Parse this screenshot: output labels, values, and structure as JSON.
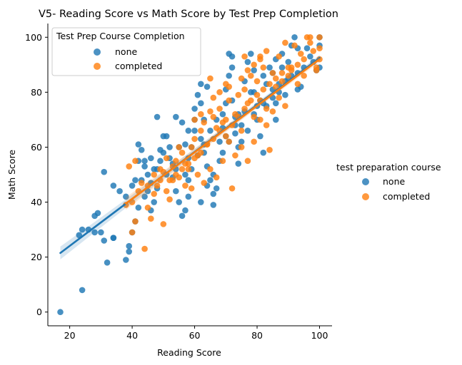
{
  "chart_data": {
    "type": "scatter",
    "title": "V5- Reading Score vs Math Score by Test Prep Completion",
    "xlabel": "Reading Score",
    "ylabel": "Math Score",
    "xlim": [
      13,
      104
    ],
    "ylim": [
      -5,
      105
    ],
    "xticks": [
      20,
      40,
      60,
      80,
      100
    ],
    "yticks": [
      0,
      20,
      40,
      60,
      80,
      100
    ],
    "grid": false,
    "legend_inner": {
      "title": "Test Prep Course Completion",
      "placement": "top-left",
      "entries": [
        "none",
        "completed"
      ]
    },
    "legend_outer": {
      "title": "test preparation course",
      "placement": "right",
      "entries": [
        "none",
        "completed"
      ]
    },
    "colors": {
      "none": "#1f77b4",
      "completed": "#ff7f0e"
    },
    "series": [
      {
        "name": "none",
        "regression": {
          "x": [
            17,
            100
          ],
          "y": [
            21.5,
            92.5
          ]
        },
        "points": [
          [
            17,
            0
          ],
          [
            24,
            8
          ],
          [
            32,
            18
          ],
          [
            38,
            19
          ],
          [
            39,
            22
          ],
          [
            39,
            24
          ],
          [
            34,
            27
          ],
          [
            34,
            27
          ],
          [
            31,
            26
          ],
          [
            30,
            29
          ],
          [
            28,
            29
          ],
          [
            23,
            28
          ],
          [
            24,
            30
          ],
          [
            26,
            30
          ],
          [
            28,
            35
          ],
          [
            29,
            36
          ],
          [
            31,
            51
          ],
          [
            34,
            46
          ],
          [
            36,
            44
          ],
          [
            38,
            42
          ],
          [
            40,
            29
          ],
          [
            41,
            33
          ],
          [
            42,
            38
          ],
          [
            40,
            46
          ],
          [
            41,
            48
          ],
          [
            42,
            55
          ],
          [
            42,
            61
          ],
          [
            43,
            59
          ],
          [
            44,
            53
          ],
          [
            45,
            50
          ],
          [
            46,
            47
          ],
          [
            44,
            42
          ],
          [
            46,
            37
          ],
          [
            47,
            40
          ],
          [
            48,
            45
          ],
          [
            48,
            52
          ],
          [
            49,
            55
          ],
          [
            49,
            59
          ],
          [
            50,
            64
          ],
          [
            48,
            71
          ],
          [
            51,
            64
          ],
          [
            52,
            56
          ],
          [
            53,
            49
          ],
          [
            54,
            44
          ],
          [
            55,
            40
          ],
          [
            56,
            35
          ],
          [
            57,
            37
          ],
          [
            58,
            42
          ],
          [
            57,
            50
          ],
          [
            58,
            56
          ],
          [
            59,
            60
          ],
          [
            58,
            66
          ],
          [
            60,
            70
          ],
          [
            60,
            74
          ],
          [
            61,
            79
          ],
          [
            62,
            76
          ],
          [
            63,
            70
          ],
          [
            62,
            63
          ],
          [
            63,
            58
          ],
          [
            64,
            53
          ],
          [
            65,
            48
          ],
          [
            66,
            43
          ],
          [
            64,
            46
          ],
          [
            66,
            39
          ],
          [
            67,
            45
          ],
          [
            68,
            55
          ],
          [
            68,
            62
          ],
          [
            69,
            67
          ],
          [
            69,
            72
          ],
          [
            70,
            76
          ],
          [
            70,
            81
          ],
          [
            71,
            86
          ],
          [
            72,
            89
          ],
          [
            72,
            77
          ],
          [
            73,
            71
          ],
          [
            73,
            65
          ],
          [
            74,
            60
          ],
          [
            74,
            54
          ],
          [
            75,
            68
          ],
          [
            76,
            73
          ],
          [
            76,
            84
          ],
          [
            77,
            91
          ],
          [
            78,
            94
          ],
          [
            79,
            88
          ],
          [
            79,
            80
          ],
          [
            80,
            75
          ],
          [
            80,
            70
          ],
          [
            81,
            64
          ],
          [
            82,
            58
          ],
          [
            82,
            76
          ],
          [
            83,
            83
          ],
          [
            84,
            89
          ],
          [
            85,
            87
          ],
          [
            85,
            81
          ],
          [
            86,
            76
          ],
          [
            86,
            70
          ],
          [
            87,
            83
          ],
          [
            88,
            89
          ],
          [
            88,
            94
          ],
          [
            89,
            79
          ],
          [
            90,
            85
          ],
          [
            90,
            91
          ],
          [
            91,
            97
          ],
          [
            92,
            100
          ],
          [
            93,
            96
          ],
          [
            93,
            87
          ],
          [
            94,
            82
          ],
          [
            95,
            89
          ],
          [
            96,
            96
          ],
          [
            97,
            93
          ],
          [
            98,
            91
          ],
          [
            99,
            88
          ],
          [
            100,
            97
          ],
          [
            100,
            100
          ],
          [
            100,
            89
          ],
          [
            71,
            94
          ],
          [
            72,
            93
          ],
          [
            64,
            82
          ],
          [
            62,
            83
          ],
          [
            56,
            69
          ],
          [
            54,
            71
          ],
          [
            52,
            60
          ],
          [
            50,
            58
          ],
          [
            46,
            56
          ],
          [
            44,
            55
          ],
          [
            43,
            48
          ],
          [
            45,
            44
          ],
          [
            47,
            52
          ],
          [
            51,
            50
          ],
          [
            53,
            54
          ],
          [
            55,
            60
          ],
          [
            57,
            61
          ],
          [
            59,
            52
          ],
          [
            61,
            57
          ],
          [
            63,
            61
          ],
          [
            65,
            66
          ],
          [
            67,
            70
          ],
          [
            69,
            58
          ],
          [
            71,
            62
          ],
          [
            73,
            68
          ],
          [
            75,
            62
          ],
          [
            77,
            66
          ],
          [
            79,
            72
          ],
          [
            81,
            77
          ],
          [
            83,
            75
          ],
          [
            85,
            78
          ],
          [
            87,
            80
          ],
          [
            89,
            84
          ],
          [
            91,
            86
          ],
          [
            93,
            81
          ],
          [
            62,
            40
          ],
          [
            66,
            50
          ],
          [
            70,
            64
          ],
          [
            74,
            72
          ],
          [
            78,
            80
          ],
          [
            82,
            86
          ],
          [
            86,
            92
          ],
          [
            58,
            48
          ],
          [
            54,
            52
          ],
          [
            60,
            66
          ]
        ]
      },
      {
        "name": "completed",
        "regression": {
          "x": [
            38,
            100
          ],
          "y": [
            39.5,
            92
          ]
        },
        "points": [
          [
            44,
            23
          ],
          [
            40,
            29
          ],
          [
            41,
            33
          ],
          [
            38,
            39
          ],
          [
            40,
            40
          ],
          [
            39,
            53
          ],
          [
            41,
            55
          ],
          [
            42,
            44
          ],
          [
            43,
            47
          ],
          [
            45,
            38
          ],
          [
            46,
            34
          ],
          [
            47,
            43
          ],
          [
            48,
            46
          ],
          [
            49,
            48
          ],
          [
            50,
            32
          ],
          [
            50,
            51
          ],
          [
            51,
            44
          ],
          [
            52,
            41
          ],
          [
            53,
            53
          ],
          [
            54,
            55
          ],
          [
            55,
            49
          ],
          [
            56,
            58
          ],
          [
            57,
            46
          ],
          [
            58,
            52
          ],
          [
            59,
            60
          ],
          [
            60,
            63
          ],
          [
            61,
            57
          ],
          [
            62,
            66
          ],
          [
            63,
            69
          ],
          [
            64,
            61
          ],
          [
            65,
            73
          ],
          [
            65,
            85
          ],
          [
            66,
            71
          ],
          [
            67,
            67
          ],
          [
            68,
            74
          ],
          [
            69,
            69
          ],
          [
            70,
            64
          ],
          [
            71,
            77
          ],
          [
            71,
            82
          ],
          [
            72,
            45
          ],
          [
            73,
            72
          ],
          [
            74,
            79
          ],
          [
            75,
            66
          ],
          [
            76,
            81
          ],
          [
            76,
            93
          ],
          [
            77,
            76
          ],
          [
            78,
            86
          ],
          [
            79,
            71
          ],
          [
            80,
            84
          ],
          [
            81,
            77
          ],
          [
            81,
            93
          ],
          [
            82,
            89
          ],
          [
            83,
            74
          ],
          [
            84,
            59
          ],
          [
            85,
            87
          ],
          [
            86,
            82
          ],
          [
            87,
            93
          ],
          [
            88,
            84
          ],
          [
            89,
            98
          ],
          [
            90,
            86
          ],
          [
            91,
            88
          ],
          [
            92,
            97
          ],
          [
            93,
            90
          ],
          [
            94,
            94
          ],
          [
            95,
            92
          ],
          [
            96,
            100
          ],
          [
            97,
            98
          ],
          [
            98,
            95
          ],
          [
            99,
            89
          ],
          [
            100,
            96
          ],
          [
            100,
            100
          ],
          [
            100,
            92
          ],
          [
            99,
            88
          ],
          [
            97,
            100
          ],
          [
            95,
            86
          ],
          [
            93,
            83
          ],
          [
            91,
            89
          ],
          [
            89,
            75
          ],
          [
            87,
            78
          ],
          [
            85,
            73
          ],
          [
            83,
            68
          ],
          [
            81,
            70
          ],
          [
            79,
            62
          ],
          [
            77,
            55
          ],
          [
            75,
            60
          ],
          [
            73,
            57
          ],
          [
            71,
            62
          ],
          [
            69,
            55
          ],
          [
            67,
            49
          ],
          [
            65,
            52
          ],
          [
            63,
            47
          ],
          [
            61,
            50
          ],
          [
            59,
            45
          ],
          [
            57,
            54
          ],
          [
            55,
            60
          ],
          [
            53,
            48
          ],
          [
            51,
            56
          ],
          [
            49,
            52
          ],
          [
            47,
            50
          ],
          [
            45,
            46
          ],
          [
            72,
            68
          ],
          [
            74,
            71
          ],
          [
            76,
            74
          ],
          [
            78,
            77
          ],
          [
            80,
            79
          ],
          [
            82,
            81
          ],
          [
            84,
            83
          ],
          [
            86,
            85
          ],
          [
            88,
            87
          ],
          [
            90,
            89
          ],
          [
            70,
            70
          ],
          [
            68,
            66
          ],
          [
            66,
            63
          ],
          [
            64,
            61
          ],
          [
            62,
            58
          ],
          [
            60,
            56
          ],
          [
            58,
            54
          ],
          [
            56,
            52
          ],
          [
            54,
            50
          ],
          [
            52,
            48
          ],
          [
            75,
            85
          ],
          [
            77,
            88
          ],
          [
            79,
            90
          ],
          [
            81,
            92
          ],
          [
            83,
            95
          ],
          [
            66,
            78
          ],
          [
            68,
            80
          ],
          [
            70,
            83
          ],
          [
            62,
            72
          ],
          [
            60,
            70
          ]
        ]
      }
    ]
  }
}
